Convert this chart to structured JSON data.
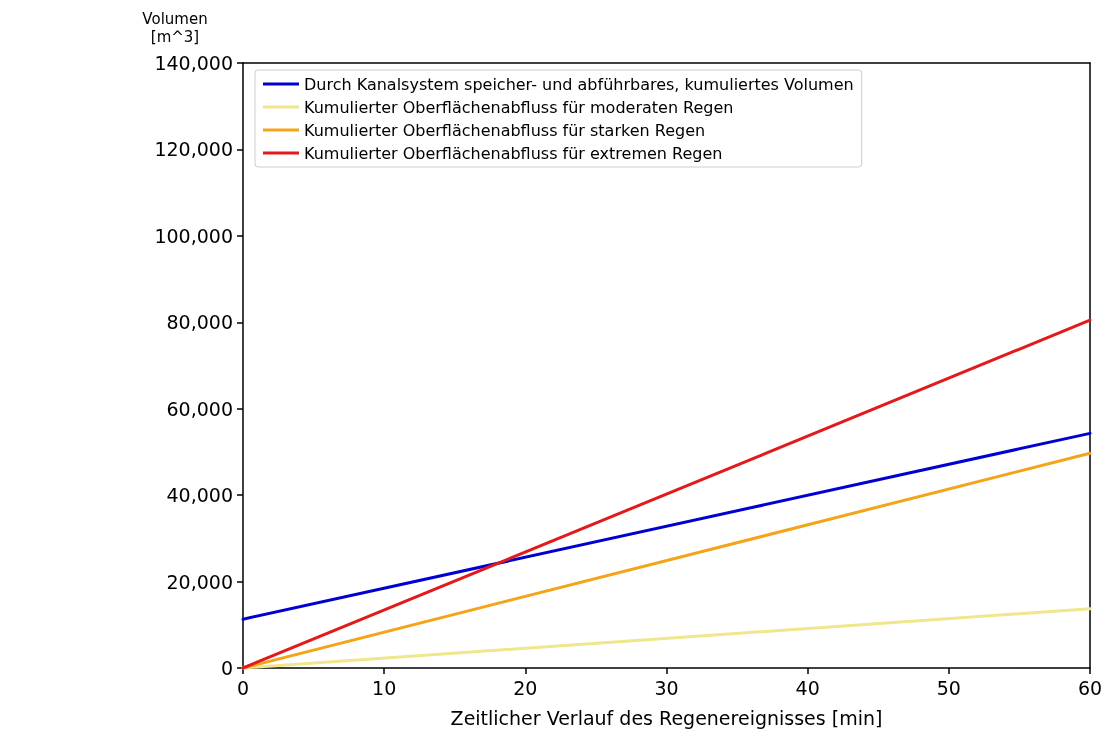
{
  "chart_data": {
    "type": "line",
    "xlabel": "Zeitlicher Verlauf des Regenereignisses [min]",
    "ylabel": "Volumen\n[m^3]",
    "x": [
      0,
      60
    ],
    "series": [
      {
        "name": "Durch Kanalsystem speicher- und abführbares, kumuliertes Volumen",
        "color": "#0000d0",
        "values": [
          11300,
          54300
        ]
      },
      {
        "name": "Kumulierter Oberflächenabfluss für moderaten Regen",
        "color": "#f0e68c",
        "values": [
          0,
          13700
        ]
      },
      {
        "name": "Kumulierter Oberflächenabfluss für starken Regen",
        "color": "#f4a418",
        "values": [
          0,
          49700
        ]
      },
      {
        "name": "Kumulierter Oberflächenabfluss für extremen Regen",
        "color": "#e31a1c",
        "values": [
          0,
          80500
        ]
      }
    ],
    "xlim": [
      0,
      60
    ],
    "xticks": [
      0,
      10,
      20,
      30,
      40,
      50,
      60
    ],
    "ylim": [
      0,
      140000
    ],
    "yticks": [
      {
        "value": 0,
        "label": "0"
      },
      {
        "value": 20000,
        "label": "20,000"
      },
      {
        "value": 40000,
        "label": "40,000"
      },
      {
        "value": 60000,
        "label": "60,000"
      },
      {
        "value": 80000,
        "label": "80,000"
      },
      {
        "value": 100000,
        "label": "100,000"
      },
      {
        "value": 120000,
        "label": "120,000"
      },
      {
        "value": 140000,
        "label": "140,000"
      }
    ],
    "grid": false,
    "legend": "top left",
    "marker": "none",
    "line_style": "solid"
  }
}
